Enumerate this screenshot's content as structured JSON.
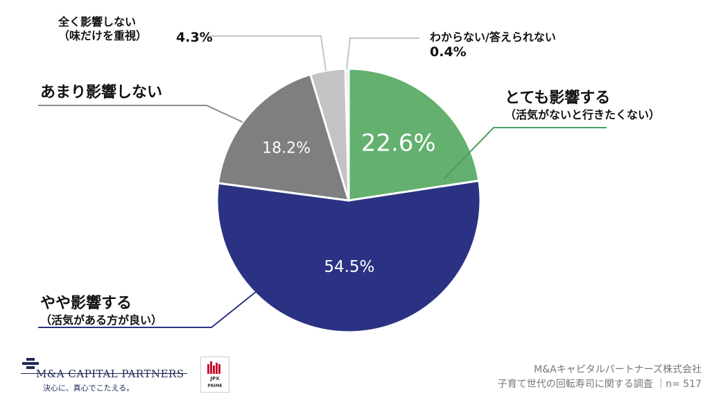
{
  "chart_data": {
    "type": "pie",
    "slices": [
      {
        "label": "とても影響する",
        "sublabel": "（活気がないと行きたくない）",
        "value": 22.6,
        "display": "22.6%",
        "color": "#64b06e",
        "value_color": "#ffffff"
      },
      {
        "label": "やや影響する",
        "sublabel": "（活気がある方が良い）",
        "value": 54.5,
        "display": "54.5%",
        "color": "#2c3283",
        "value_color": "#ffffff"
      },
      {
        "label": "あまり影響しない",
        "sublabel": "",
        "value": 18.2,
        "display": "18.2%",
        "color": "#7f7f7f",
        "value_color": "#ffffff"
      },
      {
        "label": "全く影響しない",
        "sublabel": "（味だけを重視）",
        "value": 4.3,
        "display": "4.3%",
        "color": "#c3c3c3",
        "value_color": "#222222"
      },
      {
        "label": "わからない/答えられない",
        "sublabel": "",
        "value": 0.4,
        "display": "0.4%",
        "color": "#e3e3e3",
        "value_color": "#222222"
      }
    ],
    "leader_colors": {
      "green": "#4a9e5c",
      "navy": "#2c3283",
      "gray": "#8a8a8a",
      "light": "#c3c3c3"
    }
  },
  "footer": {
    "logo_name": "M&A CAPITAL PARTNERS",
    "logo_tagline": "決心に、真心でこたえる。",
    "jpx_top": "JPX",
    "jpx_bottom": "PRIME",
    "source_line1": "M&Aキャピタルパートナーズ株式会社",
    "source_line2": "子育て世代の回転寿司に関する調査 ｜n= 517"
  }
}
